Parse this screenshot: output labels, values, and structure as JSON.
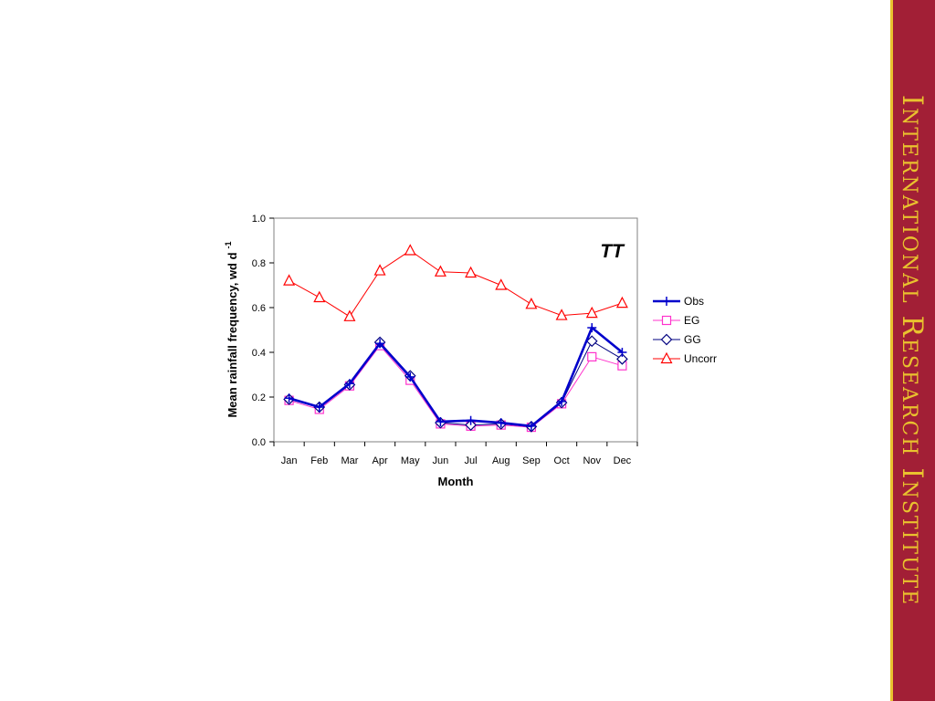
{
  "sidebar": {
    "text": "International Research Institute",
    "background_color": "#A21F36",
    "stripe_color": "#E9C22E",
    "text_color": "#E9C22E"
  },
  "chart_data": {
    "type": "line",
    "title": "",
    "ylabel": "Mean rainfall frequency, wd d",
    "ylabel_superscript": "-1",
    "xlabel": "Month",
    "categories": [
      "Jan",
      "Feb",
      "Mar",
      "Apr",
      "May",
      "Jun",
      "Jul",
      "Aug",
      "Sep",
      "Oct",
      "Nov",
      "Dec"
    ],
    "ylim": [
      0,
      1.0
    ],
    "yticks": [
      "0.0",
      "0.2",
      "0.4",
      "0.6",
      "0.8",
      "1.0"
    ],
    "grid": false,
    "legend_position": "right",
    "annotation": "TT",
    "series": [
      {
        "name": "Obs",
        "color": "#0000CC",
        "marker": "plus",
        "line_width": "thick",
        "values": [
          0.195,
          0.155,
          0.26,
          0.44,
          0.29,
          0.09,
          0.095,
          0.085,
          0.07,
          0.18,
          0.51,
          0.4
        ]
      },
      {
        "name": "EG",
        "color": "#FF33CC",
        "marker": "square",
        "line_width": "thin",
        "values": [
          0.185,
          0.145,
          0.25,
          0.43,
          0.275,
          0.08,
          0.07,
          0.075,
          0.065,
          0.17,
          0.38,
          0.34
        ]
      },
      {
        "name": "GG",
        "color": "#000080",
        "marker": "diamond",
        "line_width": "thin",
        "values": [
          0.19,
          0.155,
          0.255,
          0.445,
          0.295,
          0.085,
          0.075,
          0.08,
          0.068,
          0.175,
          0.45,
          0.37
        ]
      },
      {
        "name": "Uncorr",
        "color": "#FF0000",
        "marker": "triangle",
        "line_width": "thin",
        "values": [
          0.72,
          0.645,
          0.56,
          0.765,
          0.855,
          0.76,
          0.755,
          0.7,
          0.615,
          0.565,
          0.575,
          0.62
        ]
      }
    ]
  }
}
